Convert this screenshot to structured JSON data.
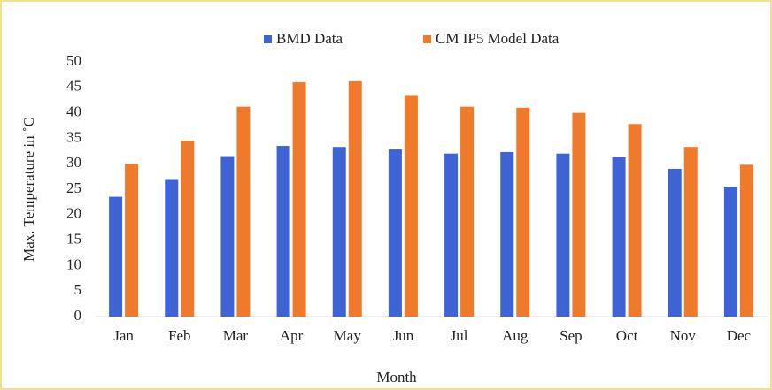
{
  "chart_data": {
    "type": "bar",
    "categories": [
      "Jan",
      "Feb",
      "Mar",
      "Apr",
      "May",
      "Jun",
      "Jul",
      "Aug",
      "Sep",
      "Oct",
      "Nov",
      "Dec"
    ],
    "series": [
      {
        "name": "BMD Data",
        "color": "#3d63d4",
        "values": [
          23.5,
          27,
          31.5,
          33.5,
          33.3,
          32.8,
          32,
          32.3,
          32,
          31.3,
          29,
          25.5
        ]
      },
      {
        "name": "CM IP5 Model Data",
        "color": "#f07a2c",
        "values": [
          30,
          34.5,
          41.2,
          46,
          46.2,
          43.5,
          41.2,
          41,
          40,
          37.8,
          33.3,
          29.8
        ]
      }
    ],
    "xlabel": "Month",
    "ylabel": "Max. Temperature in ˚C",
    "ylim": [
      0,
      50
    ],
    "yticks": [
      0,
      5,
      10,
      15,
      20,
      25,
      30,
      35,
      40,
      45,
      50
    ],
    "legend": "top"
  }
}
